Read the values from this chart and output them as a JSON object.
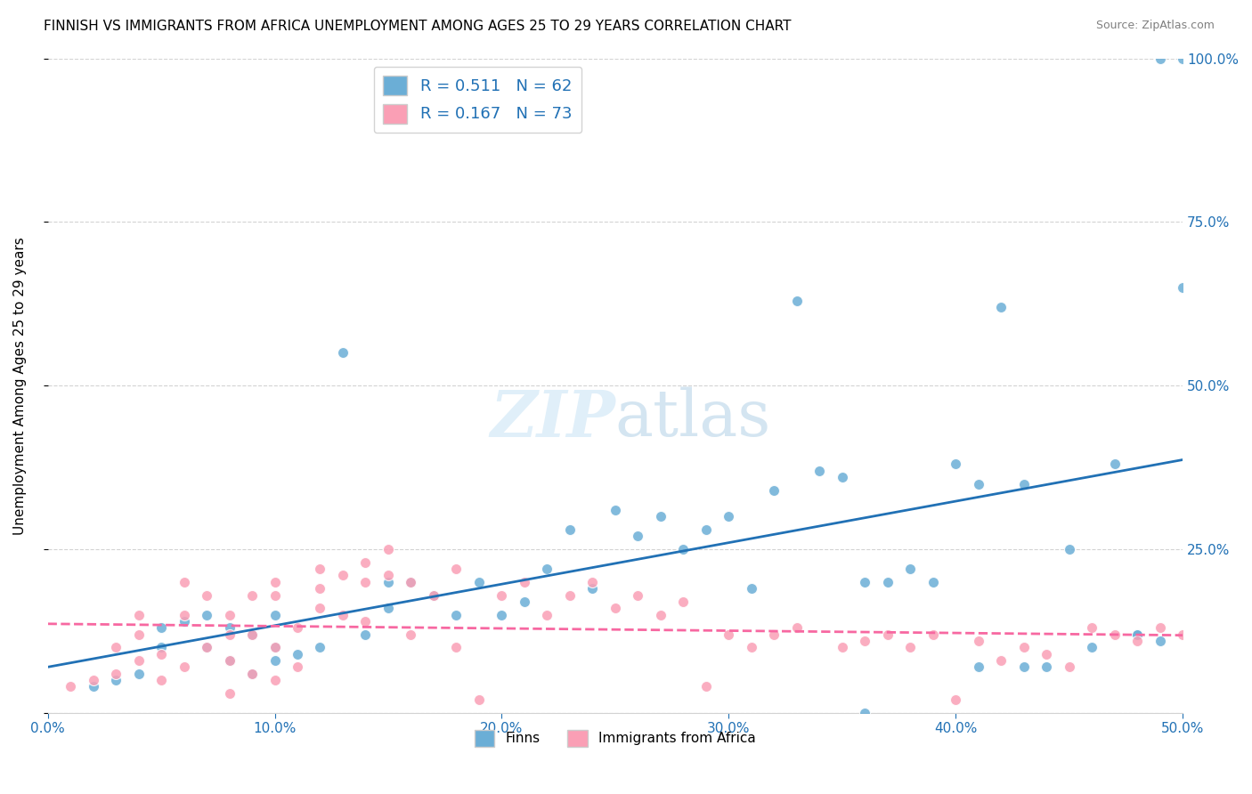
{
  "title": "FINNISH VS IMMIGRANTS FROM AFRICA UNEMPLOYMENT AMONG AGES 25 TO 29 YEARS CORRELATION CHART",
  "source": "Source: ZipAtlas.com",
  "ylabel": "Unemployment Among Ages 25 to 29 years",
  "legend_label1": "Finns",
  "legend_label2": "Immigrants from Africa",
  "r1": 0.511,
  "n1": 62,
  "r2": 0.167,
  "n2": 73,
  "color_blue": "#6baed6",
  "color_pink": "#fa9fb5",
  "color_blue_line": "#2171b5",
  "color_pink_line": "#f768a1",
  "color_text_blue": "#2171b5",
  "xlim": [
    0.0,
    0.5
  ],
  "ylim": [
    0.0,
    1.0
  ],
  "xticks": [
    0.0,
    0.1,
    0.2,
    0.3,
    0.4,
    0.5
  ],
  "yticks": [
    0.0,
    0.25,
    0.5,
    0.75,
    1.0
  ],
  "ytick_labels": [
    "",
    "25.0%",
    "50.0%",
    "75.0%",
    "100.0%"
  ],
  "xtick_labels": [
    "0.0%",
    "10.0%",
    "20.0%",
    "30.0%",
    "40.0%",
    "50.0%"
  ],
  "finns_x": [
    0.02,
    0.03,
    0.04,
    0.05,
    0.05,
    0.06,
    0.07,
    0.07,
    0.08,
    0.08,
    0.09,
    0.09,
    0.1,
    0.1,
    0.1,
    0.11,
    0.12,
    0.13,
    0.14,
    0.15,
    0.15,
    0.16,
    0.17,
    0.18,
    0.19,
    0.2,
    0.21,
    0.22,
    0.23,
    0.24,
    0.25,
    0.26,
    0.27,
    0.28,
    0.29,
    0.3,
    0.31,
    0.32,
    0.33,
    0.34,
    0.35,
    0.36,
    0.37,
    0.38,
    0.39,
    0.4,
    0.41,
    0.42,
    0.43,
    0.44,
    0.45,
    0.46,
    0.47,
    0.48,
    0.49,
    0.5,
    0.5,
    0.36,
    0.41,
    0.43,
    0.48,
    0.49
  ],
  "finns_y": [
    0.04,
    0.05,
    0.06,
    0.1,
    0.13,
    0.14,
    0.1,
    0.15,
    0.08,
    0.13,
    0.06,
    0.12,
    0.08,
    0.1,
    0.15,
    0.09,
    0.1,
    0.55,
    0.12,
    0.16,
    0.2,
    0.2,
    0.18,
    0.15,
    0.2,
    0.15,
    0.17,
    0.22,
    0.28,
    0.19,
    0.31,
    0.27,
    0.3,
    0.25,
    0.28,
    0.3,
    0.19,
    0.34,
    0.63,
    0.37,
    0.36,
    0.0,
    0.2,
    0.22,
    0.2,
    0.38,
    0.07,
    0.62,
    0.35,
    0.07,
    0.25,
    0.1,
    0.38,
    0.12,
    1.0,
    1.0,
    0.65,
    0.2,
    0.35,
    0.07,
    0.12,
    0.11
  ],
  "africa_x": [
    0.01,
    0.02,
    0.03,
    0.03,
    0.04,
    0.04,
    0.05,
    0.05,
    0.06,
    0.06,
    0.07,
    0.07,
    0.08,
    0.08,
    0.08,
    0.09,
    0.09,
    0.09,
    0.1,
    0.1,
    0.1,
    0.11,
    0.11,
    0.12,
    0.12,
    0.13,
    0.13,
    0.14,
    0.14,
    0.15,
    0.15,
    0.16,
    0.17,
    0.18,
    0.19,
    0.2,
    0.21,
    0.22,
    0.23,
    0.24,
    0.25,
    0.26,
    0.27,
    0.28,
    0.29,
    0.3,
    0.31,
    0.32,
    0.33,
    0.35,
    0.36,
    0.37,
    0.38,
    0.39,
    0.4,
    0.41,
    0.42,
    0.43,
    0.44,
    0.45,
    0.46,
    0.47,
    0.48,
    0.49,
    0.5,
    0.04,
    0.06,
    0.08,
    0.1,
    0.12,
    0.14,
    0.16,
    0.18
  ],
  "africa_y": [
    0.04,
    0.05,
    0.06,
    0.1,
    0.08,
    0.12,
    0.05,
    0.09,
    0.07,
    0.15,
    0.1,
    0.18,
    0.08,
    0.12,
    0.03,
    0.06,
    0.12,
    0.18,
    0.05,
    0.1,
    0.2,
    0.07,
    0.13,
    0.19,
    0.22,
    0.21,
    0.15,
    0.2,
    0.23,
    0.21,
    0.25,
    0.2,
    0.18,
    0.22,
    0.02,
    0.18,
    0.2,
    0.15,
    0.18,
    0.2,
    0.16,
    0.18,
    0.15,
    0.17,
    0.04,
    0.12,
    0.1,
    0.12,
    0.13,
    0.1,
    0.11,
    0.12,
    0.1,
    0.12,
    0.02,
    0.11,
    0.08,
    0.1,
    0.09,
    0.07,
    0.13,
    0.12,
    0.11,
    0.13,
    0.12,
    0.15,
    0.2,
    0.15,
    0.18,
    0.16,
    0.14,
    0.12,
    0.1
  ]
}
